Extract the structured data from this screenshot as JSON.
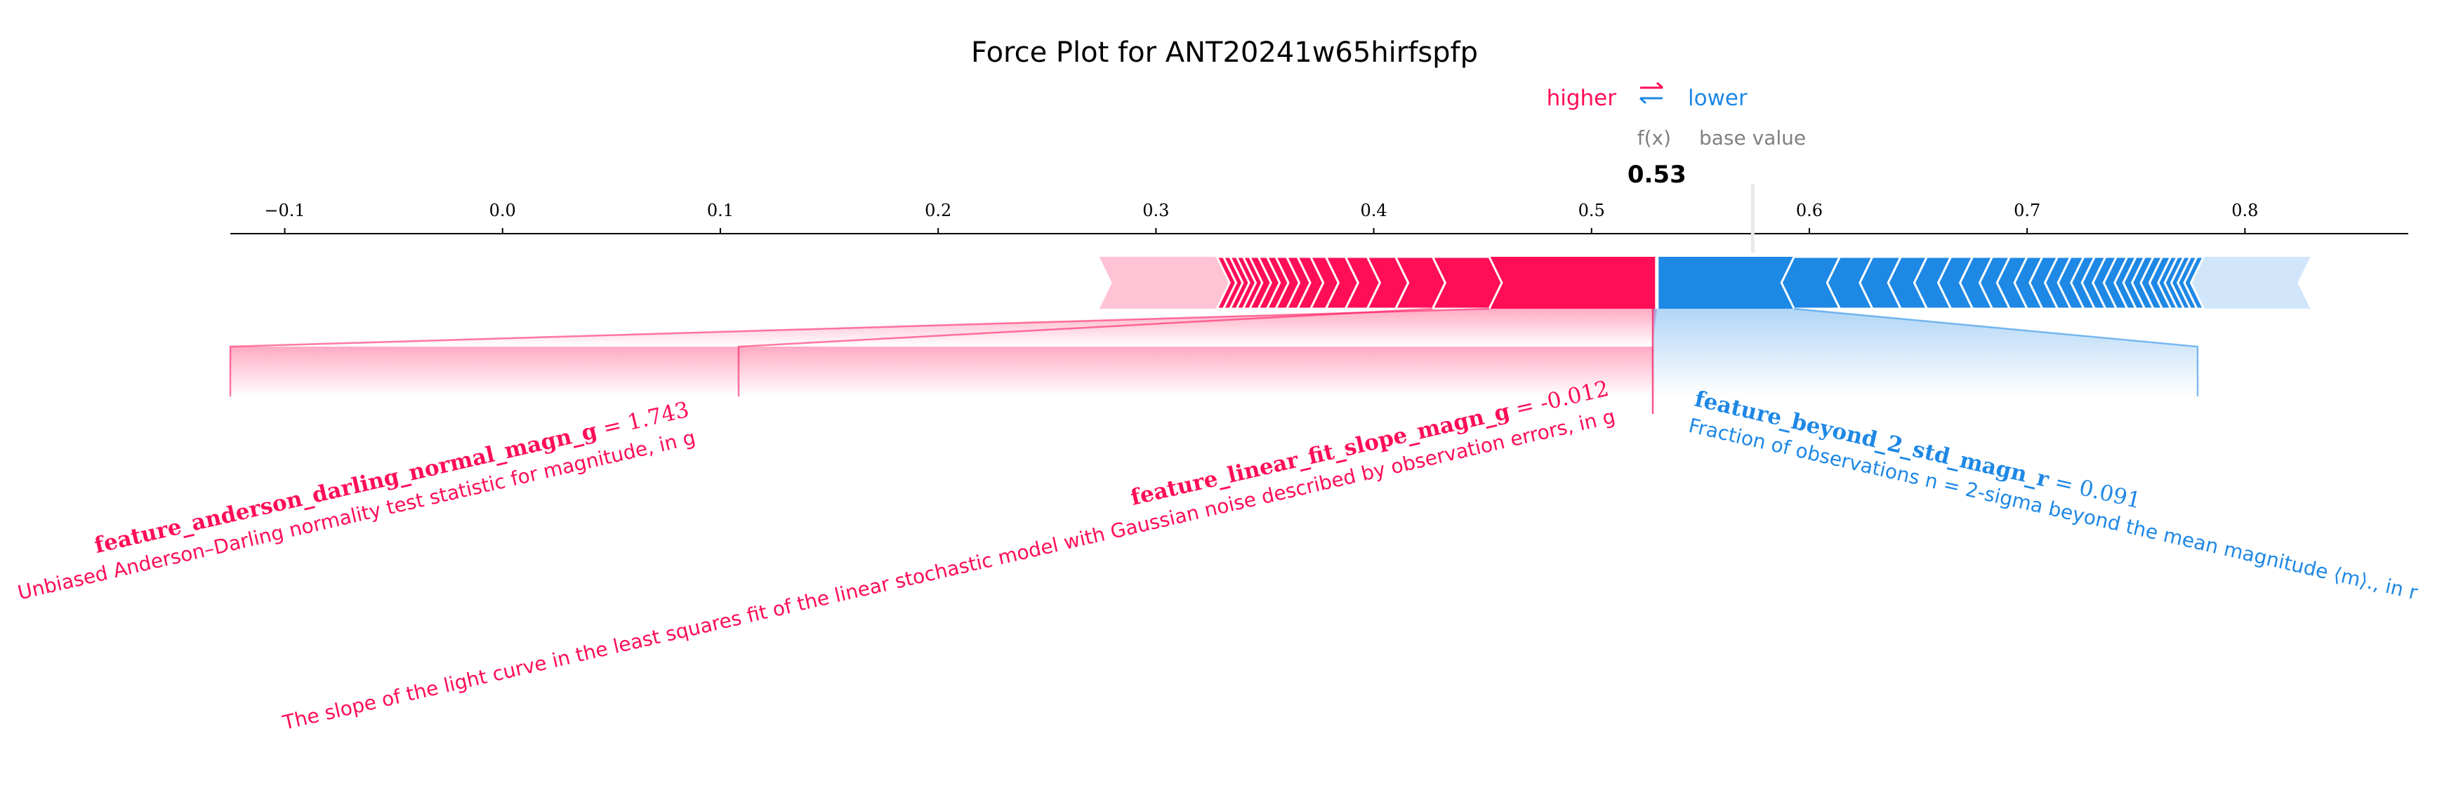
{
  "chart_data": {
    "type": "force",
    "title": "Force Plot for ANT20241w65hirfspfp",
    "legend": {
      "higher": "higher",
      "lower": "lower",
      "arrows": "⇄"
    },
    "fx_label": "f(x)",
    "base_label": "base value",
    "fx_value_text": "0.53",
    "fx_value": 0.53,
    "base_value": 0.574,
    "xlim": [
      -0.125,
      0.875
    ],
    "tick_values": [
      -0.1,
      0.0,
      0.1,
      0.2,
      0.3,
      0.4,
      0.5,
      0.6,
      0.7,
      0.8
    ],
    "tick_labels": [
      "−0.1",
      "0.0",
      "0.1",
      "0.2",
      "0.3",
      "0.4",
      "0.5",
      "0.6",
      "0.7",
      "0.8"
    ],
    "positive_range": [
      0.274,
      0.53
    ],
    "negative_range": [
      0.53,
      0.83
    ],
    "positive_segment_bounds": [
      0.53,
      0.453,
      0.427,
      0.41,
      0.397,
      0.387,
      0.378,
      0.371,
      0.365,
      0.36,
      0.355,
      0.351,
      0.347,
      0.343,
      0.34,
      0.337,
      0.334,
      0.331,
      0.328
    ],
    "negative_segment_bounds": [
      0.53,
      0.593,
      0.614,
      0.629,
      0.642,
      0.654,
      0.665,
      0.675,
      0.684,
      0.692,
      0.7,
      0.707,
      0.714,
      0.72,
      0.726,
      0.731,
      0.736,
      0.741,
      0.746,
      0.75,
      0.754,
      0.758,
      0.762,
      0.766,
      0.769,
      0.772,
      0.775,
      0.778,
      0.781
    ],
    "annotations": [
      {
        "side": "positive",
        "feature": "feature_anderson_darling_normal_magn_g",
        "value_text": " = 1.743",
        "description": "Unbiased Anderson–Darling normality test statistic for magnitude, in g",
        "segment": [
          0.453,
          0.53
        ]
      },
      {
        "side": "positive",
        "feature": "feature_linear_fit_slope_magn_g",
        "value_text": " = -0.012",
        "description": "The slope of the light curve in the least squares fit of the linear stochastic model with Gaussian noise described by observation errors, in g",
        "segment": [
          0.427,
          0.453
        ]
      },
      {
        "side": "negative",
        "feature": "feature_beyond_2_std_magn_r",
        "value_text": " = 0.091",
        "description": "Fraction of observations n = 2-sigma beyond the mean magnitude ⟨m⟩., in r",
        "segment": [
          0.53,
          0.593
        ]
      }
    ],
    "colors": {
      "positive": "#ff0d57",
      "negative": "#1e88e5",
      "positive_light": "#ffc3d5",
      "negative_light": "#d1e6fa",
      "grey": "#808080"
    }
  }
}
